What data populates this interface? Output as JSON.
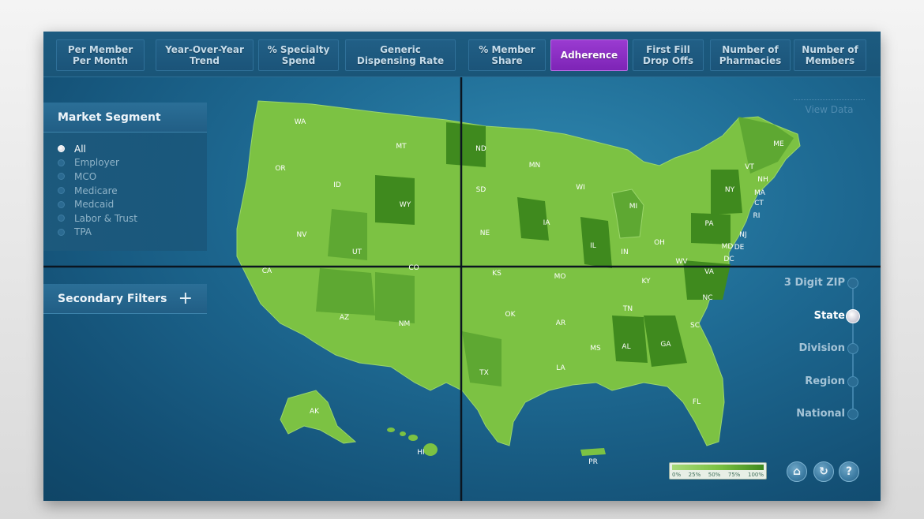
{
  "tabs": [
    {
      "label": "Per Member\nPer Month",
      "active": false
    },
    {
      "label": "Year-Over-Year\nTrend",
      "active": false
    },
    {
      "label": "% Specialty\nSpend",
      "active": false
    },
    {
      "label": "Generic\nDispensing Rate",
      "active": false
    },
    {
      "label": "% Member\nShare",
      "active": false
    },
    {
      "label": "Adherence",
      "active": true
    },
    {
      "label": "First Fill\nDrop Offs",
      "active": false
    },
    {
      "label": "Number of\nPharmacies",
      "active": false
    },
    {
      "label": "Number of\nMembers",
      "active": false
    }
  ],
  "market_segment": {
    "title": "Market Segment",
    "options": [
      "All",
      "Employer",
      "MCO",
      "Medicare",
      "Medcaid",
      "Labor & Trust",
      "TPA"
    ],
    "selected": "All"
  },
  "secondary_filters": {
    "title": "Secondary Filters",
    "expand_symbol": "+"
  },
  "view_data_label": "View Data",
  "geo_levels": {
    "options": [
      "3 Digit ZIP",
      "State",
      "Division",
      "Region",
      "National"
    ],
    "selected": "State"
  },
  "map": {
    "state_labels": [
      "WA",
      "OR",
      "CA",
      "ID",
      "NV",
      "MT",
      "WY",
      "UT",
      "AZ",
      "CO",
      "NM",
      "ND",
      "SD",
      "NE",
      "KS",
      "OK",
      "TX",
      "MN",
      "IA",
      "MO",
      "AR",
      "LA",
      "WI",
      "IL",
      "MS",
      "MI",
      "IN",
      "KY",
      "TN",
      "AL",
      "OH",
      "WV",
      "GA",
      "FL",
      "SC",
      "NC",
      "VA",
      "PA",
      "NY",
      "VT",
      "NH",
      "ME",
      "MA",
      "CT",
      "RI",
      "NJ",
      "DE",
      "MD",
      "DC",
      "AK",
      "HI",
      "PR"
    ],
    "colors": {
      "light": "#7cc243",
      "mid": "#5ea832",
      "dark": "#3f8a1e"
    }
  },
  "legend": {
    "ticks": [
      "0%",
      "25%",
      "50%",
      "75%",
      "100%"
    ]
  },
  "footer_buttons": [
    "home-icon",
    "refresh-icon",
    "help-icon"
  ],
  "help_glyph": "?",
  "home_glyph": "⌂",
  "refresh_glyph": "↻"
}
